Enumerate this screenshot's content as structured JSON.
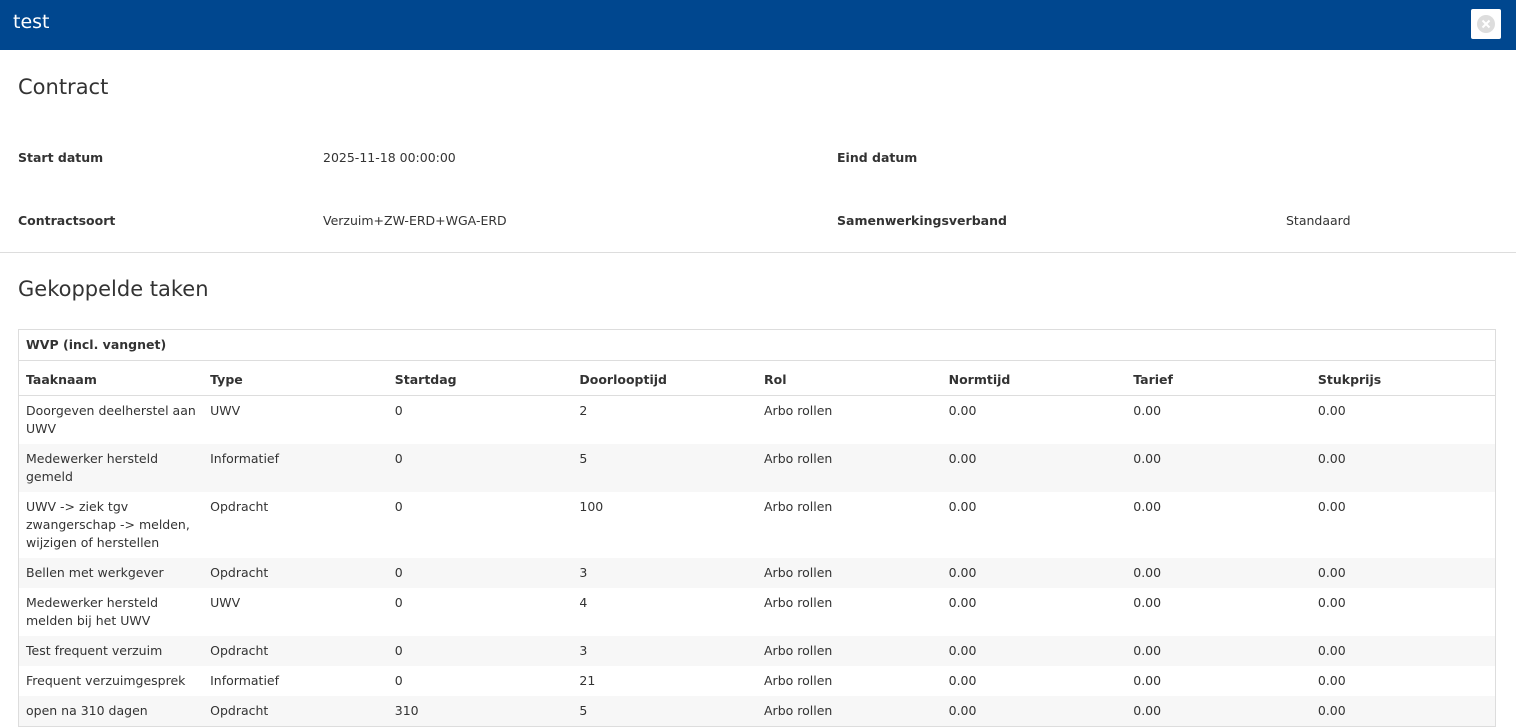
{
  "header": {
    "title": "test"
  },
  "contract": {
    "title": "Contract",
    "fields": [
      {
        "label": "Start datum",
        "value": "2025-11-18 00:00:00"
      },
      {
        "label": "Eind datum"
      },
      {
        "label": "Contractsoort",
        "value": "Verzuim+ZW-ERD+WGA-ERD"
      },
      {
        "label": "Samenwerkingsverband",
        "value": "Standaard"
      }
    ]
  },
  "tasks": {
    "title": "Gekoppelde taken",
    "table": {
      "group": "WVP (incl. vangnet)",
      "columns": [
        "Taaknaam",
        "Type",
        "Startdag",
        "Doorlooptijd",
        "Rol",
        "Normtijd",
        "Tarief",
        "Stukprijs"
      ],
      "rows": [
        [
          "Doorgeven deelherstel aan UWV",
          "UWV",
          "0",
          "2",
          "Arbo rollen",
          "0.00",
          "0.00",
          "0.00"
        ],
        [
          "Medewerker hersteld gemeld",
          "Informatief",
          "0",
          "5",
          "Arbo rollen",
          "0.00",
          "0.00",
          "0.00"
        ],
        [
          "UWV -> ziek tgv zwangerschap -> melden, wijzigen of herstellen",
          "Opdracht",
          "0",
          "100",
          "Arbo rollen",
          "0.00",
          "0.00",
          "0.00"
        ],
        [
          "Bellen met werkgever",
          "Opdracht",
          "0",
          "3",
          "Arbo rollen",
          "0.00",
          "0.00",
          "0.00"
        ],
        [
          "Medewerker hersteld melden bij het UWV",
          "UWV",
          "0",
          "4",
          "Arbo rollen",
          "0.00",
          "0.00",
          "0.00"
        ],
        [
          "Test frequent verzuim",
          "Opdracht",
          "0",
          "3",
          "Arbo rollen",
          "0.00",
          "0.00",
          "0.00"
        ],
        [
          "Frequent verzuimgesprek",
          "Informatief",
          "0",
          "21",
          "Arbo rollen",
          "0.00",
          "0.00",
          "0.00"
        ],
        [
          "open na 310 dagen",
          "Opdracht",
          "310",
          "5",
          "Arbo rollen",
          "0.00",
          "0.00",
          "0.00"
        ]
      ]
    }
  }
}
